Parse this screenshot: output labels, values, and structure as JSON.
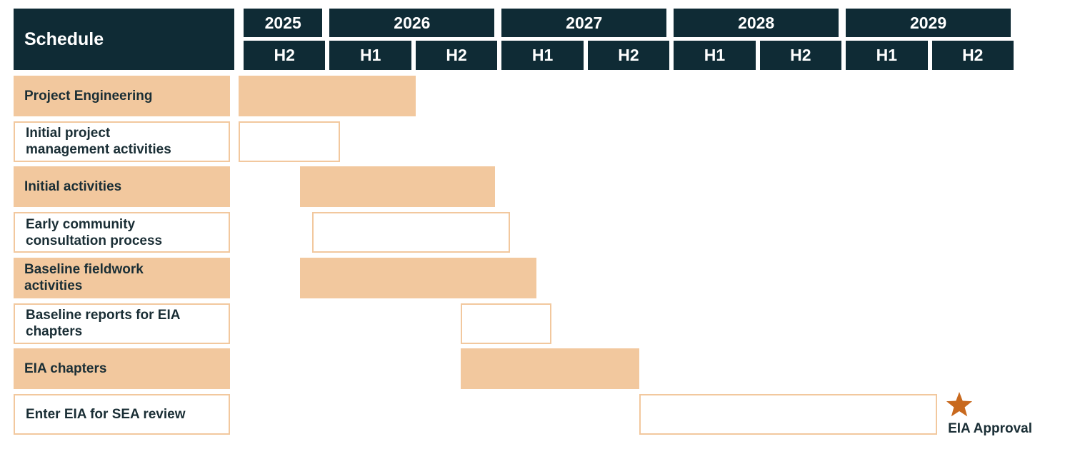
{
  "chart_data": {
    "type": "gantt",
    "title": "Schedule",
    "xlim": [
      2025.5,
      2030
    ],
    "periods": [
      {
        "year": "2025",
        "halves": [
          "H2"
        ]
      },
      {
        "year": "2026",
        "halves": [
          "H1",
          "H2"
        ]
      },
      {
        "year": "2027",
        "halves": [
          "H1",
          "H2"
        ]
      },
      {
        "year": "2028",
        "halves": [
          "H1",
          "H2"
        ]
      },
      {
        "year": "2029",
        "halves": [
          "H1",
          "H2"
        ]
      }
    ],
    "fill_color": "#f2c89e",
    "header_color": "#0f2b35",
    "tasks": [
      {
        "name": "Project Engineering",
        "filled": true,
        "start": 2025.47,
        "end": 2026.5
      },
      {
        "name": "Initial project\nmanagement activities",
        "filled": false,
        "start": 2025.47,
        "end": 2026.06
      },
      {
        "name": "Initial activities",
        "filled": true,
        "start": 2025.83,
        "end": 2026.96
      },
      {
        "name": "Early community\nconsultation process",
        "filled": false,
        "start": 2025.9,
        "end": 2027.05
      },
      {
        "name": "Baseline fieldwork\nactivities",
        "filled": true,
        "start": 2025.83,
        "end": 2027.2
      },
      {
        "name": "Baseline reports for EIA\nchapters",
        "filled": false,
        "start": 2026.76,
        "end": 2027.29
      },
      {
        "name": "EIA chapters",
        "filled": true,
        "start": 2026.76,
        "end": 2027.8
      },
      {
        "name": "Enter EIA for SEA review",
        "filled": false,
        "start": 2027.8,
        "end": 2029.53
      }
    ],
    "milestone": {
      "label": "EIA Approval",
      "x": 2029.66,
      "color": "#c8691e"
    }
  }
}
